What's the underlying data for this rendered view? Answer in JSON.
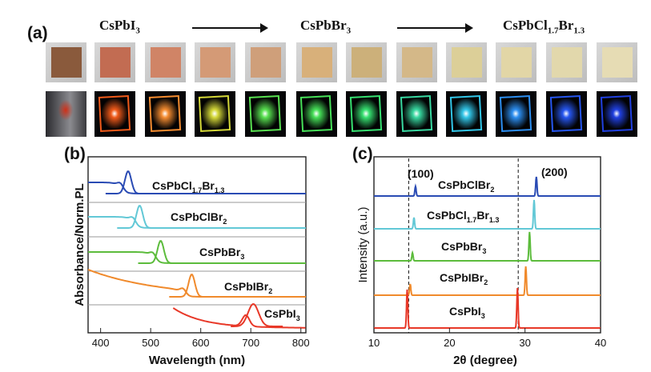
{
  "figure": {
    "panel_labels": [
      "(a)",
      "(b)",
      "(c)"
    ],
    "compositions": [
      {
        "main": "CsPbI",
        "sub": "3",
        "tail": ""
      },
      {
        "main": "CsPbBr",
        "sub": "3",
        "tail": ""
      },
      {
        "main": "CsPbCl",
        "sub": "1.7",
        "tail": "Br",
        "sub2": "1.3"
      }
    ],
    "film_colors": [
      "#8a5a3c",
      "#c26c52",
      "#d08466",
      "#d49a76",
      "#cf9f7a",
      "#d8b07a",
      "#ccb07a",
      "#d4b888",
      "#dccf98",
      "#e2d6a6",
      "#e2d8ac",
      "#e6dcb4"
    ],
    "emission_colors": [
      "#d03018",
      "#f05a1a",
      "#f58c30",
      "#d4d838",
      "#58e050",
      "#46e058",
      "#36e070",
      "#38d8a0",
      "#32c6e8",
      "#2c8ef0",
      "#2656f0",
      "#2040e0"
    ]
  },
  "panel_b": {
    "labels": [
      {
        "main": "CsPbCl",
        "sub": "1.7",
        "tail": "Br",
        "sub2": "1.3"
      },
      {
        "main": "CsPbClBr",
        "sub": "2",
        "tail": ""
      },
      {
        "main": "CsPbBr",
        "sub": "3",
        "tail": ""
      },
      {
        "main": "CsPbIBr",
        "sub": "2",
        "tail": ""
      },
      {
        "main": "CsPbI",
        "sub": "3",
        "tail": ""
      }
    ]
  },
  "panel_c": {
    "peak_labels": [
      "(100)",
      "(200)"
    ],
    "labels": [
      {
        "main": "CsPbClBr",
        "sub": "2",
        "tail": ""
      },
      {
        "main": "CsPbCl",
        "sub": "1.7",
        "tail": "Br",
        "sub2": "1.3"
      },
      {
        "main": "CsPbBr",
        "sub": "3",
        "tail": ""
      },
      {
        "main": "CsPbIBr",
        "sub": "2",
        "tail": ""
      },
      {
        "main": "CsPbI",
        "sub": "3",
        "tail": ""
      }
    ]
  },
  "chart_data": [
    {
      "type": "line",
      "xlabel": "Wavelength (nm)",
      "ylabel": "Absorbance/Norm.PL",
      "xlim": [
        375,
        810
      ],
      "x_ticks": [
        "400",
        "500",
        "600",
        "700",
        "800"
      ],
      "series": [
        {
          "color": "#2a4bb4",
          "absorption_onset_nm": 440,
          "pl_peak_nm": 455
        },
        {
          "color": "#62c8d6",
          "absorption_onset_nm": 465,
          "pl_peak_nm": 478
        },
        {
          "color": "#5cbc3c",
          "absorption_onset_nm": 505,
          "pl_peak_nm": 520
        },
        {
          "color": "#f08a2c",
          "absorption_onset_nm": 565,
          "pl_peak_nm": 582
        },
        {
          "color": "#e83828",
          "absorption_onset_nm": 690,
          "pl_peak_nm": 705
        }
      ]
    },
    {
      "type": "line",
      "xlabel": "2θ (degree)",
      "ylabel": "Intensity (a.u.)",
      "xlim": [
        10,
        40
      ],
      "x_ticks": [
        "10",
        "20",
        "30",
        "40"
      ],
      "reference_lines_2theta": [
        14.6,
        29.1
      ],
      "series": [
        {
          "color": "#2a4bb4",
          "peaks_2theta": [
            15.5,
            31.5
          ]
        },
        {
          "color": "#62c8d6",
          "peaks_2theta": [
            15.3,
            31.2
          ]
        },
        {
          "color": "#5cbc3c",
          "peaks_2theta": [
            15.1,
            30.6
          ]
        },
        {
          "color": "#f08a2c",
          "peaks_2theta": [
            14.8,
            30.1
          ]
        },
        {
          "color": "#e83828",
          "peaks_2theta": [
            14.4,
            29.0
          ]
        }
      ]
    }
  ]
}
